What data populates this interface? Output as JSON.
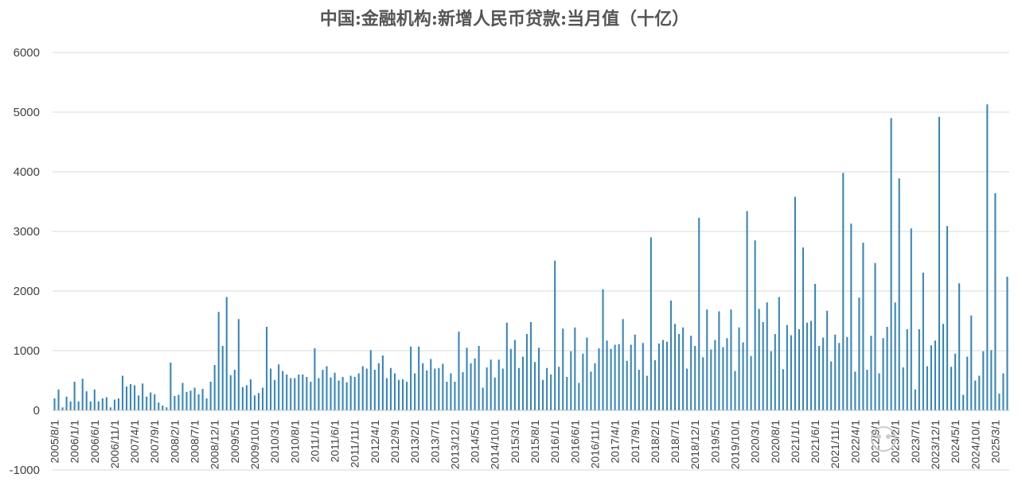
{
  "chart_data": {
    "type": "bar",
    "title": "中国:金融机构:新增人民币贷款:当月值（十亿）",
    "xlabel": "",
    "ylabel": "",
    "ylim": [
      -1000,
      6000
    ],
    "yticks": [
      6000,
      5000,
      4000,
      3000,
      2000,
      1000,
      0,
      -1000
    ],
    "grid": true,
    "legend": "none",
    "color": "#3a87b9",
    "x_tick_labels": [
      "2005/8/1",
      "2006/1/1",
      "2006/6/1",
      "2006/11/1",
      "2007/4/1",
      "2007/9/1",
      "2008/2/1",
      "2008/7/1",
      "2008/12/1",
      "2009/5/1",
      "2009/10/1",
      "2010/3/1",
      "2010/8/1",
      "2011/1/1",
      "2011/6/1",
      "2011/11/1",
      "2012/4/1",
      "2012/9/1",
      "2013/2/1",
      "2013/7/1",
      "2013/12/1",
      "2014/5/1",
      "2014/10/1",
      "2015/3/1",
      "2015/8/1",
      "2016/1/1",
      "2016/6/1",
      "2016/11/1",
      "2017/4/1",
      "2017/9/1",
      "2018/2/1",
      "2018/7/1",
      "2018/12/1",
      "2019/5/1",
      "2019/10/1",
      "2020/3/1",
      "2020/8/1",
      "2021/1/1",
      "2021/6/1",
      "2021/11/1",
      "2022/4/1",
      "2022/9/1",
      "2023/2/1",
      "2023/7/1",
      "2023/12/1",
      "2024/5/1",
      "2024/10/1",
      "2025/3/1"
    ],
    "start": "2005/8/1",
    "values": [
      200,
      350,
      50,
      230,
      150,
      480,
      150,
      530,
      320,
      150,
      350,
      150,
      200,
      220,
      50,
      180,
      200,
      580,
      400,
      440,
      420,
      250,
      450,
      230,
      300,
      270,
      130,
      80,
      50,
      800,
      240,
      260,
      460,
      310,
      330,
      380,
      270,
      360,
      200,
      480,
      760,
      1650,
      1080,
      1900,
      590,
      680,
      1530,
      390,
      420,
      520,
      250,
      290,
      380,
      1400,
      700,
      510,
      770,
      660,
      600,
      540,
      540,
      600,
      600,
      560,
      480,
      1040,
      540,
      680,
      740,
      550,
      630,
      500,
      560,
      470,
      580,
      560,
      620,
      740,
      700,
      1010,
      680,
      790,
      920,
      540,
      710,
      620,
      510,
      520,
      480,
      1070,
      620,
      1070,
      790,
      670,
      860,
      700,
      710,
      780,
      480,
      620,
      480,
      1320,
      640,
      1050,
      790,
      870,
      1080,
      380,
      720,
      850,
      550,
      850,
      700,
      1470,
      1030,
      1180,
      710,
      900,
      1280,
      1480,
      810,
      1050,
      510,
      710,
      600,
      2510,
      730,
      1370,
      560,
      990,
      1390,
      460,
      950,
      1220,
      650,
      790,
      1040,
      2030,
      1170,
      1030,
      1100,
      1110,
      1530,
      830,
      1100,
      1270,
      680,
      1130,
      580,
      2900,
      840,
      1120,
      1180,
      1150,
      1840,
      1450,
      1280,
      1390,
      700,
      1250,
      1080,
      3230,
      890,
      1690,
      1020,
      1180,
      1660,
      1060,
      1210,
      1690,
      660,
      1390,
      1140,
      3340,
      910,
      2850,
      1700,
      1480,
      1810,
      990,
      1280,
      1900,
      690,
      1430,
      1260,
      3580,
      1360,
      2730,
      1470,
      1500,
      2120,
      1080,
      1220,
      1670,
      820,
      1270,
      1130,
      3980,
      1230,
      3130,
      650,
      1890,
      2810,
      680,
      1250,
      2470,
      620,
      1210,
      1400,
      4900,
      1810,
      3890,
      720,
      1360,
      3050,
      350,
      1360,
      2310,
      740,
      1090,
      1170,
      4920,
      1450,
      3090,
      730,
      950,
      2130,
      260,
      900,
      1590,
      500,
      580,
      990,
      5130,
      1010,
      3640,
      280,
      620,
      2240
    ]
  }
}
